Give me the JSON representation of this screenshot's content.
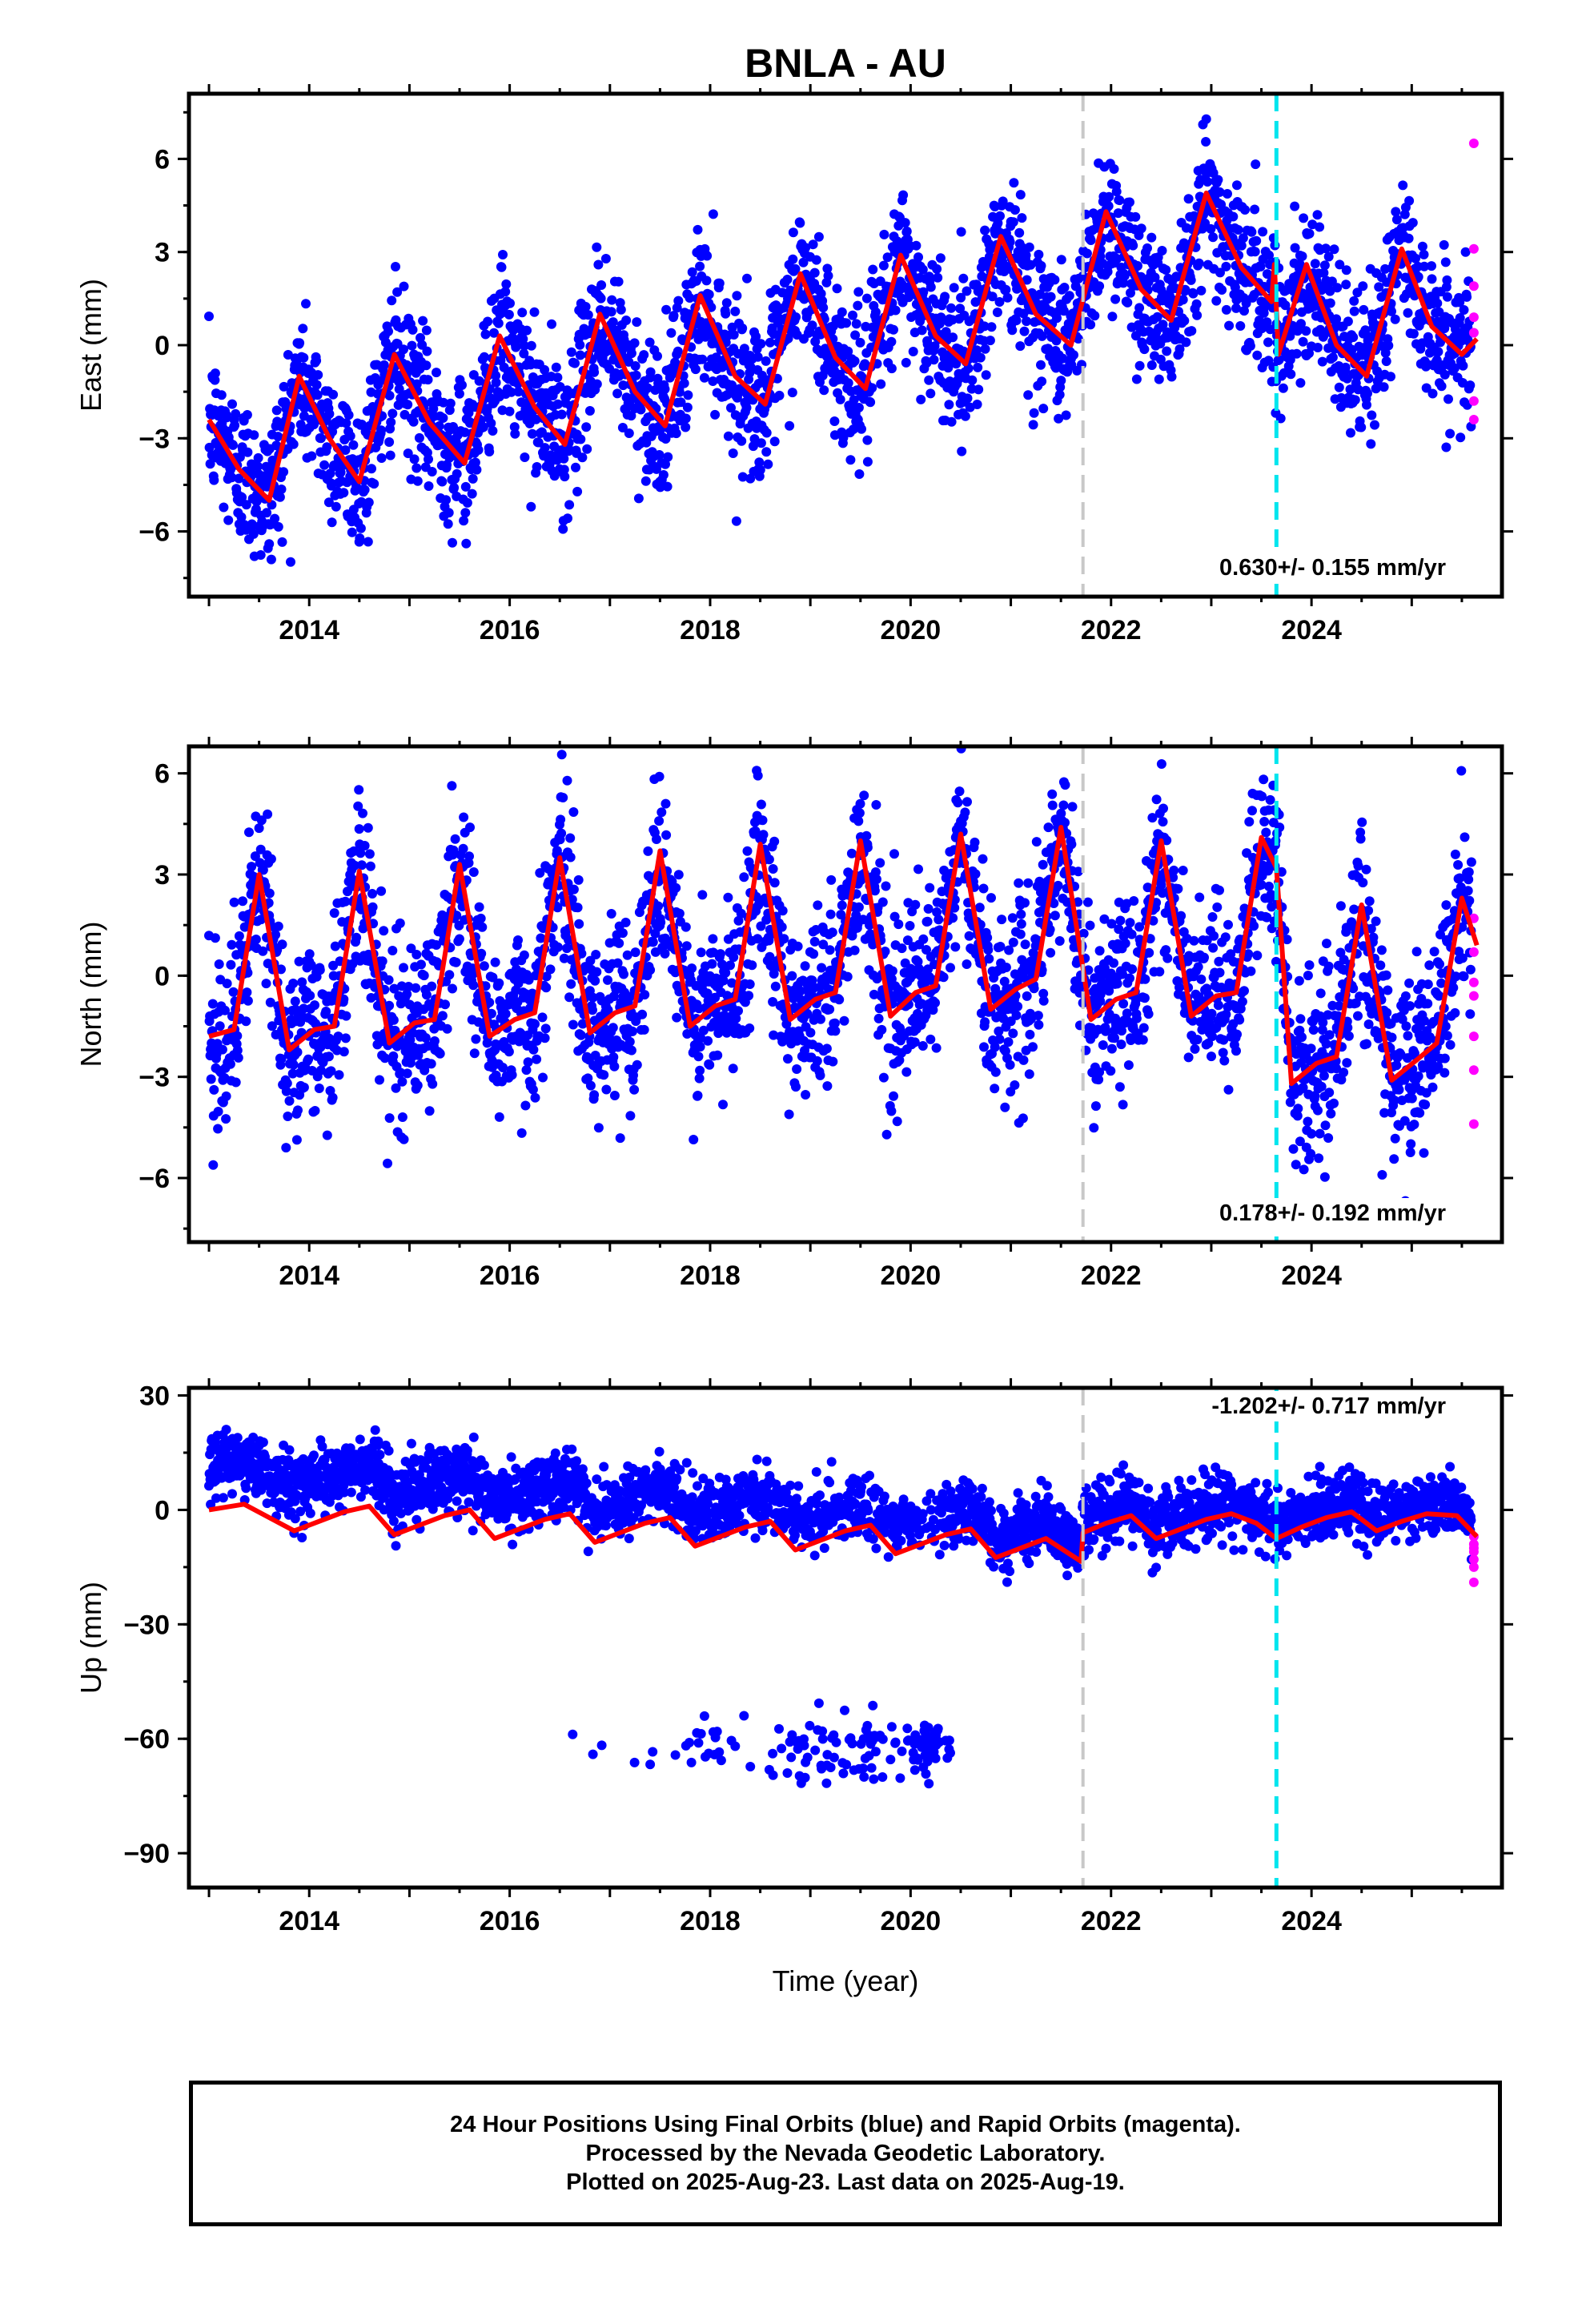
{
  "colors": {
    "final_orbits": "#0000ff",
    "rapid_orbits": "#ff00ff",
    "model_fit": "#ff0000",
    "equipment_change": "#c8c8c8",
    "earthquake_or_offset": "#00e5ee",
    "frame": "#000000"
  },
  "chart_data": [
    {
      "type": "scatter",
      "id": "east",
      "title": "BNLA - AU",
      "xlabel": "",
      "ylabel": "East (mm)",
      "xlim": [
        2012.8,
        2025.9
      ],
      "ylim": [
        -8.1,
        8.1
      ],
      "xticks": [
        2014,
        2016,
        2018,
        2020,
        2022,
        2024
      ],
      "yticks": [
        6,
        3,
        0,
        -3,
        -6
      ],
      "ytick_labels": [
        "6",
        "3",
        "0",
        "−3",
        "−6"
      ],
      "rate_text": "0.630+/- 0.155 mm/yr",
      "vlines": [
        2021.72,
        2023.65
      ],
      "trend": 0.63,
      "offset_at_2013": -3.2,
      "annual_amplitude": 2.6,
      "annual_peak": 0.9,
      "step_at_2023_65": -1.5,
      "scatter_sigma": 1.2,
      "fit": [
        [
          2013.0,
          -2.4
        ],
        [
          2013.3,
          -4.0
        ],
        [
          2013.6,
          -5.0
        ],
        [
          2013.9,
          -1.0
        ],
        [
          2014.2,
          -3.0
        ],
        [
          2014.5,
          -4.4
        ],
        [
          2014.85,
          -0.3
        ],
        [
          2015.2,
          -2.5
        ],
        [
          2015.55,
          -3.8
        ],
        [
          2015.9,
          0.3
        ],
        [
          2016.25,
          -2.0
        ],
        [
          2016.55,
          -3.2
        ],
        [
          2016.9,
          1.0
        ],
        [
          2017.25,
          -1.5
        ],
        [
          2017.55,
          -2.6
        ],
        [
          2017.9,
          1.6
        ],
        [
          2018.25,
          -1.0
        ],
        [
          2018.55,
          -1.9
        ],
        [
          2018.9,
          2.3
        ],
        [
          2019.25,
          -0.4
        ],
        [
          2019.55,
          -1.4
        ],
        [
          2019.9,
          2.9
        ],
        [
          2020.25,
          0.3
        ],
        [
          2020.55,
          -0.6
        ],
        [
          2020.9,
          3.5
        ],
        [
          2021.25,
          1.0
        ],
        [
          2021.6,
          0.0
        ],
        [
          2021.95,
          4.3
        ],
        [
          2022.3,
          1.8
        ],
        [
          2022.6,
          0.8
        ],
        [
          2022.95,
          4.9
        ],
        [
          2023.3,
          2.5
        ],
        [
          2023.6,
          1.4
        ],
        [
          2023.63,
          2.6
        ],
        [
          2023.67,
          -0.3
        ],
        [
          2023.95,
          2.6
        ],
        [
          2024.25,
          0.0
        ],
        [
          2024.55,
          -1.0
        ],
        [
          2024.9,
          3.1
        ],
        [
          2025.2,
          0.6
        ],
        [
          2025.5,
          -0.3
        ],
        [
          2025.65,
          0.2
        ]
      ],
      "rapid_points": [
        [
          2025.62,
          6.5
        ],
        [
          2025.62,
          3.1
        ],
        [
          2025.62,
          1.9
        ],
        [
          2025.62,
          0.9
        ],
        [
          2025.62,
          0.4
        ],
        [
          2025.62,
          -1.8
        ],
        [
          2025.62,
          -2.4
        ]
      ]
    },
    {
      "type": "scatter",
      "id": "north",
      "title": "",
      "xlabel": "",
      "ylabel": "North (mm)",
      "xlim": [
        2012.8,
        2025.9
      ],
      "ylim": [
        -7.9,
        6.8
      ],
      "xticks": [
        2014,
        2016,
        2018,
        2020,
        2022,
        2024
      ],
      "yticks": [
        6,
        3,
        0,
        -3,
        -6
      ],
      "ytick_labels": [
        "6",
        "3",
        "0",
        "−3",
        "−6"
      ],
      "rate_text": "0.178+/- 0.192 mm/yr",
      "vlines": [
        2021.72,
        2023.65
      ],
      "trend": 0.178,
      "offset_at_2013": 0.3,
      "annual_amplitude": 2.4,
      "annual_peak": 0.5,
      "step_at_2023_65": -2.0,
      "scatter_sigma": 1.3,
      "fit": [
        [
          2013.0,
          -1.8
        ],
        [
          2013.25,
          -1.6
        ],
        [
          2013.5,
          3.0
        ],
        [
          2013.8,
          -2.2
        ],
        [
          2014.05,
          -1.6
        ],
        [
          2014.25,
          -1.5
        ],
        [
          2014.5,
          3.1
        ],
        [
          2014.8,
          -2.0
        ],
        [
          2015.05,
          -1.4
        ],
        [
          2015.25,
          -1.3
        ],
        [
          2015.5,
          3.3
        ],
        [
          2015.8,
          -1.8
        ],
        [
          2016.05,
          -1.3
        ],
        [
          2016.25,
          -1.1
        ],
        [
          2016.5,
          3.5
        ],
        [
          2016.8,
          -1.7
        ],
        [
          2017.05,
          -1.1
        ],
        [
          2017.25,
          -0.9
        ],
        [
          2017.5,
          3.7
        ],
        [
          2017.8,
          -1.5
        ],
        [
          2018.05,
          -0.9
        ],
        [
          2018.25,
          -0.7
        ],
        [
          2018.5,
          3.9
        ],
        [
          2018.8,
          -1.3
        ],
        [
          2019.05,
          -0.7
        ],
        [
          2019.25,
          -0.5
        ],
        [
          2019.5,
          4.0
        ],
        [
          2019.8,
          -1.2
        ],
        [
          2020.05,
          -0.5
        ],
        [
          2020.25,
          -0.3
        ],
        [
          2020.5,
          4.2
        ],
        [
          2020.8,
          -1.0
        ],
        [
          2021.05,
          -0.4
        ],
        [
          2021.25,
          -0.1
        ],
        [
          2021.5,
          4.4
        ],
        [
          2021.8,
          -1.3
        ],
        [
          2022.05,
          -0.7
        ],
        [
          2022.25,
          -0.5
        ],
        [
          2022.5,
          4.0
        ],
        [
          2022.8,
          -1.2
        ],
        [
          2023.05,
          -0.6
        ],
        [
          2023.25,
          -0.5
        ],
        [
          2023.5,
          4.1
        ],
        [
          2023.65,
          3.2
        ],
        [
          2023.8,
          -3.2
        ],
        [
          2024.05,
          -2.6
        ],
        [
          2024.25,
          -2.4
        ],
        [
          2024.5,
          2.1
        ],
        [
          2024.8,
          -3.1
        ],
        [
          2025.05,
          -2.5
        ],
        [
          2025.25,
          -2.0
        ],
        [
          2025.5,
          2.3
        ],
        [
          2025.65,
          0.9
        ]
      ],
      "rapid_points": [
        [
          2025.62,
          1.7
        ],
        [
          2025.62,
          0.7
        ],
        [
          2025.62,
          -0.2
        ],
        [
          2025.62,
          -0.6
        ],
        [
          2025.62,
          -1.8
        ],
        [
          2025.62,
          -2.8
        ],
        [
          2025.62,
          -4.4
        ]
      ]
    },
    {
      "type": "scatter",
      "id": "up",
      "title": "",
      "xlabel": "Time (year)",
      "ylabel": "Up (mm)",
      "xlim": [
        2012.8,
        2025.9
      ],
      "ylim": [
        -99,
        32
      ],
      "xticks": [
        2014,
        2016,
        2018,
        2020,
        2022,
        2024
      ],
      "yticks": [
        30,
        0,
        -30,
        -60,
        -90
      ],
      "ytick_labels": [
        "30",
        "0",
        "−30",
        "−60",
        "−90"
      ],
      "rate_text": "-1.202+/- 0.717 mm/yr",
      "vlines": [
        2021.72,
        2023.65
      ],
      "trend": -1.2,
      "offset_at_2013": 10.0,
      "annual_amplitude": 3.5,
      "annual_peak": 0.4,
      "scatter_sigma": 4.0,
      "outlier_cluster_mean": -62,
      "fit": [
        [
          2013.0,
          0.0
        ],
        [
          2013.35,
          1.5
        ],
        [
          2013.6,
          -2.0
        ],
        [
          2013.85,
          -5.5
        ],
        [
          2014.1,
          -3.0
        ],
        [
          2014.35,
          -0.5
        ],
        [
          2014.6,
          1.0
        ],
        [
          2014.85,
          -6.5
        ],
        [
          2015.1,
          -4.0
        ],
        [
          2015.35,
          -1.5
        ],
        [
          2015.6,
          0.0
        ],
        [
          2015.85,
          -7.5
        ],
        [
          2016.1,
          -5.0
        ],
        [
          2016.35,
          -2.5
        ],
        [
          2016.6,
          -1.0
        ],
        [
          2016.85,
          -8.5
        ],
        [
          2017.1,
          -6.0
        ],
        [
          2017.35,
          -3.5
        ],
        [
          2017.6,
          -2.0
        ],
        [
          2017.85,
          -9.5
        ],
        [
          2018.1,
          -7.0
        ],
        [
          2018.35,
          -4.5
        ],
        [
          2018.6,
          -3.0
        ],
        [
          2018.85,
          -10.5
        ],
        [
          2019.1,
          -8.0
        ],
        [
          2019.35,
          -5.5
        ],
        [
          2019.6,
          -4.0
        ],
        [
          2019.85,
          -11.5
        ],
        [
          2020.1,
          -9.0
        ],
        [
          2020.35,
          -6.5
        ],
        [
          2020.6,
          -5.0
        ],
        [
          2020.85,
          -12.5
        ],
        [
          2021.1,
          -10.0
        ],
        [
          2021.35,
          -7.5
        ],
        [
          2021.7,
          -13.5
        ],
        [
          2021.72,
          -6.0
        ],
        [
          2021.95,
          -3.5
        ],
        [
          2022.2,
          -1.5
        ],
        [
          2022.45,
          -7.5
        ],
        [
          2022.7,
          -5.0
        ],
        [
          2022.95,
          -2.5
        ],
        [
          2023.2,
          -1.0
        ],
        [
          2023.45,
          -3.5
        ],
        [
          2023.65,
          -7.5
        ],
        [
          2023.9,
          -4.5
        ],
        [
          2024.15,
          -2.0
        ],
        [
          2024.4,
          -0.5
        ],
        [
          2024.65,
          -5.5
        ],
        [
          2024.9,
          -3.0
        ],
        [
          2025.15,
          -1.0
        ],
        [
          2025.45,
          -1.5
        ],
        [
          2025.65,
          -7.0
        ]
      ],
      "rapid_points": [
        [
          2025.62,
          -7
        ],
        [
          2025.62,
          -9
        ],
        [
          2025.62,
          -10
        ],
        [
          2025.62,
          -11
        ],
        [
          2025.62,
          -13
        ],
        [
          2025.62,
          -15
        ],
        [
          2025.62,
          -19
        ]
      ]
    }
  ],
  "footer": {
    "line1": "24 Hour Positions Using Final Orbits (blue) and Rapid Orbits (magenta).",
    "line2": "Processed by the Nevada Geodetic Laboratory.",
    "line3": "Plotted on 2025-Aug-23. Last data on 2025-Aug-19."
  }
}
